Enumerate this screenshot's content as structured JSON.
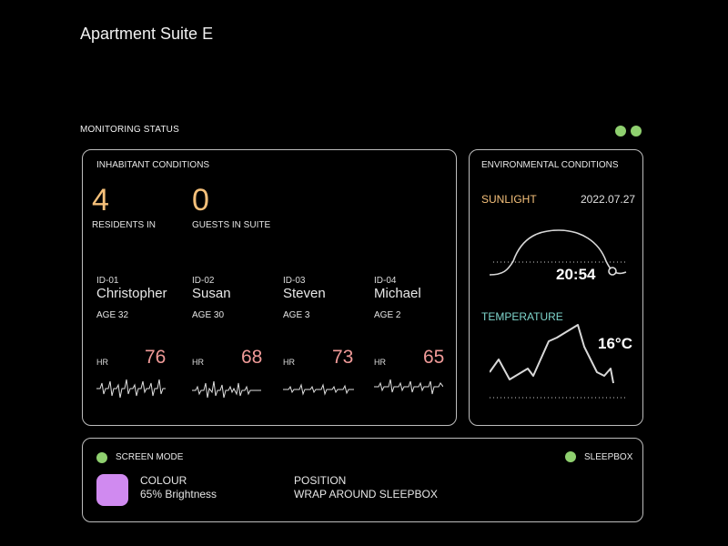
{
  "header": {
    "title": "Apartment Suite E"
  },
  "monitoring": {
    "label": "MONITORING STATUS",
    "status_colors": [
      "#8fd06f",
      "#8fd06f"
    ]
  },
  "inhabitants": {
    "label": "INHABITANT CONDITIONS",
    "residents_count": "4",
    "residents_label": "RESIDENTS IN",
    "guests_count": "0",
    "guests_label": "GUESTS IN SUITE",
    "people": [
      {
        "id": "ID-01",
        "name": "Christopher",
        "age": "AGE 32",
        "hr_label": "HR",
        "hr": "76"
      },
      {
        "id": "ID-02",
        "name": "Susan",
        "age": "AGE 30",
        "hr_label": "HR",
        "hr": "68"
      },
      {
        "id": "ID-03",
        "name": "Steven",
        "age": "AGE 3",
        "hr_label": "HR",
        "hr": "73"
      },
      {
        "id": "ID-04",
        "name": "Michael",
        "age": "AGE 2",
        "hr_label": "HR",
        "hr": "65"
      }
    ]
  },
  "environment": {
    "label": "ENVIRONMENTAL CONDITIONS",
    "sunlight_label": "SUNLIGHT",
    "date": "2022.07.27",
    "time": "20:54",
    "temperature_label": "TEMPERATURE",
    "temperature": "16°C"
  },
  "screen": {
    "mode_label": "SCREEN MODE",
    "sleepbox_label": "SLEEPBOX",
    "colour_title": "COLOUR",
    "colour_value": "65% Brightness",
    "position_title": "POSITION",
    "position_value": "WRAP AROUND SLEEPBOX",
    "swatch_color": "#d08af0",
    "indicator_color": "#8fd06f"
  }
}
